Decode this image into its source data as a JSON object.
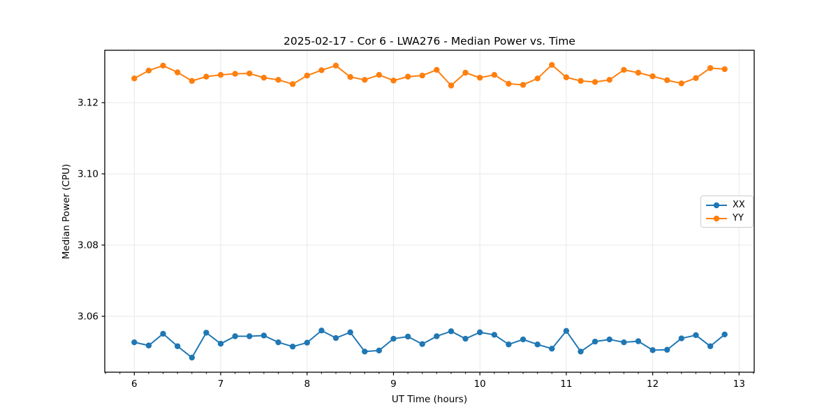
{
  "figure": {
    "title": "2025-02-17 - Cor 6 - LWA276 - Median Power vs. Time"
  },
  "chart_data": {
    "type": "line",
    "title": "2025-02-17 - Cor 6 - LWA276 - Median Power vs. Time",
    "xlabel": "UT Time (hours)",
    "ylabel": "Median Power (CPU)",
    "x": [
      6.0,
      6.167,
      6.333,
      6.5,
      6.667,
      6.833,
      7.0,
      7.167,
      7.333,
      7.5,
      7.667,
      7.833,
      8.0,
      8.167,
      8.333,
      8.5,
      8.667,
      8.833,
      9.0,
      9.167,
      9.333,
      9.5,
      9.667,
      9.833,
      10.0,
      10.167,
      10.333,
      10.5,
      10.667,
      10.833,
      11.0,
      11.167,
      11.333,
      11.5,
      11.667,
      11.833,
      12.0,
      12.167,
      12.333,
      12.5,
      12.667,
      12.833
    ],
    "series": [
      {
        "name": "XX",
        "color": "#1f77b4",
        "values": [
          3.0527,
          3.0518,
          3.0551,
          3.0516,
          3.0484,
          3.0554,
          3.0523,
          3.0544,
          3.0544,
          3.0546,
          3.0527,
          3.0515,
          3.0526,
          3.056,
          3.0539,
          3.0555,
          3.0501,
          3.0504,
          3.0537,
          3.0543,
          3.0522,
          3.0544,
          3.0558,
          3.0537,
          3.0555,
          3.0548,
          3.0521,
          3.0535,
          3.0521,
          3.0509,
          3.0559,
          3.0501,
          3.0529,
          3.0535,
          3.0527,
          3.053,
          3.0505,
          3.0506,
          3.0538,
          3.0547,
          3.0516,
          3.0549
        ]
      },
      {
        "name": "YY",
        "color": "#ff7f0e",
        "values": [
          3.1268,
          3.129,
          3.1304,
          3.1285,
          3.1261,
          3.1273,
          3.1278,
          3.1281,
          3.1282,
          3.127,
          3.1264,
          3.1252,
          3.1276,
          3.1291,
          3.1304,
          3.1272,
          3.1264,
          3.1278,
          3.1262,
          3.1273,
          3.1276,
          3.1292,
          3.1248,
          3.1284,
          3.127,
          3.1278,
          3.1253,
          3.125,
          3.1268,
          3.1306,
          3.1271,
          3.1261,
          3.1258,
          3.1264,
          3.1292,
          3.1284,
          3.1274,
          3.1263,
          3.1254,
          3.1269,
          3.1297,
          3.1294
        ]
      }
    ],
    "xlim": [
      5.658,
      13.175
    ],
    "ylim": [
      3.0443,
      3.1347
    ],
    "xticks": [
      6,
      7,
      8,
      9,
      10,
      11,
      12,
      13
    ],
    "xtick_labels": [
      "6",
      "7",
      "8",
      "9",
      "10",
      "11",
      "12",
      "13"
    ],
    "yticks": [
      3.06,
      3.08,
      3.1,
      3.12
    ],
    "ytick_labels": [
      "3.06",
      "3.08",
      "3.10",
      "3.12"
    ],
    "minor_xtick_step": 0.16667,
    "grid": true,
    "marker": "circle",
    "legend": {
      "position": "center right",
      "entries": [
        "XX",
        "YY"
      ]
    },
    "style": {
      "grid_color": "#e8e8e8",
      "spine_color": "#000000",
      "tick_color": "#000000",
      "text_color": "#000000",
      "background": "#ffffff",
      "line_width": 2,
      "marker_radius": 4.2
    }
  }
}
